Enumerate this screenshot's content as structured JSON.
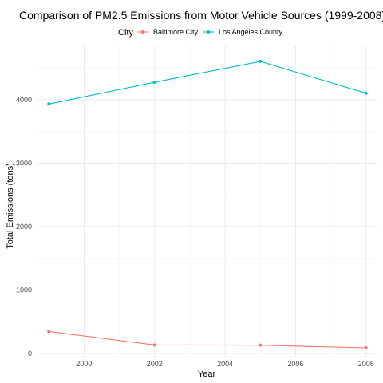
{
  "chart_data": {
    "type": "line",
    "title": "Comparison of PM2.5 Emissions from Motor Vehicle Sources (1999-2008)",
    "xlabel": "Year",
    "ylabel": "Total Emissions (tons)",
    "x": [
      1999,
      2002,
      2005,
      2008
    ],
    "xlim": [
      1998.7,
      2008.3
    ],
    "ylim": [
      -50,
      4840
    ],
    "xticks": [
      2000,
      2002,
      2004,
      2006,
      2008
    ],
    "xtick_labels": [
      "2000",
      "2002",
      "2004",
      "2006",
      "2008"
    ],
    "yticks": [
      0,
      1000,
      2000,
      3000,
      4000
    ],
    "ytick_labels": [
      "0",
      "1000",
      "2000",
      "3000",
      "4000"
    ],
    "grid": true,
    "legend": {
      "title": "City",
      "position": "top"
    },
    "series": [
      {
        "name": "Baltimore City",
        "color": "#F8766D",
        "values": [
          346.8,
          134.3,
          130.4,
          88.3
        ]
      },
      {
        "name": "Los Angeles County",
        "color": "#00BFC4",
        "values": [
          3931,
          4274,
          4602,
          4101
        ]
      }
    ]
  }
}
